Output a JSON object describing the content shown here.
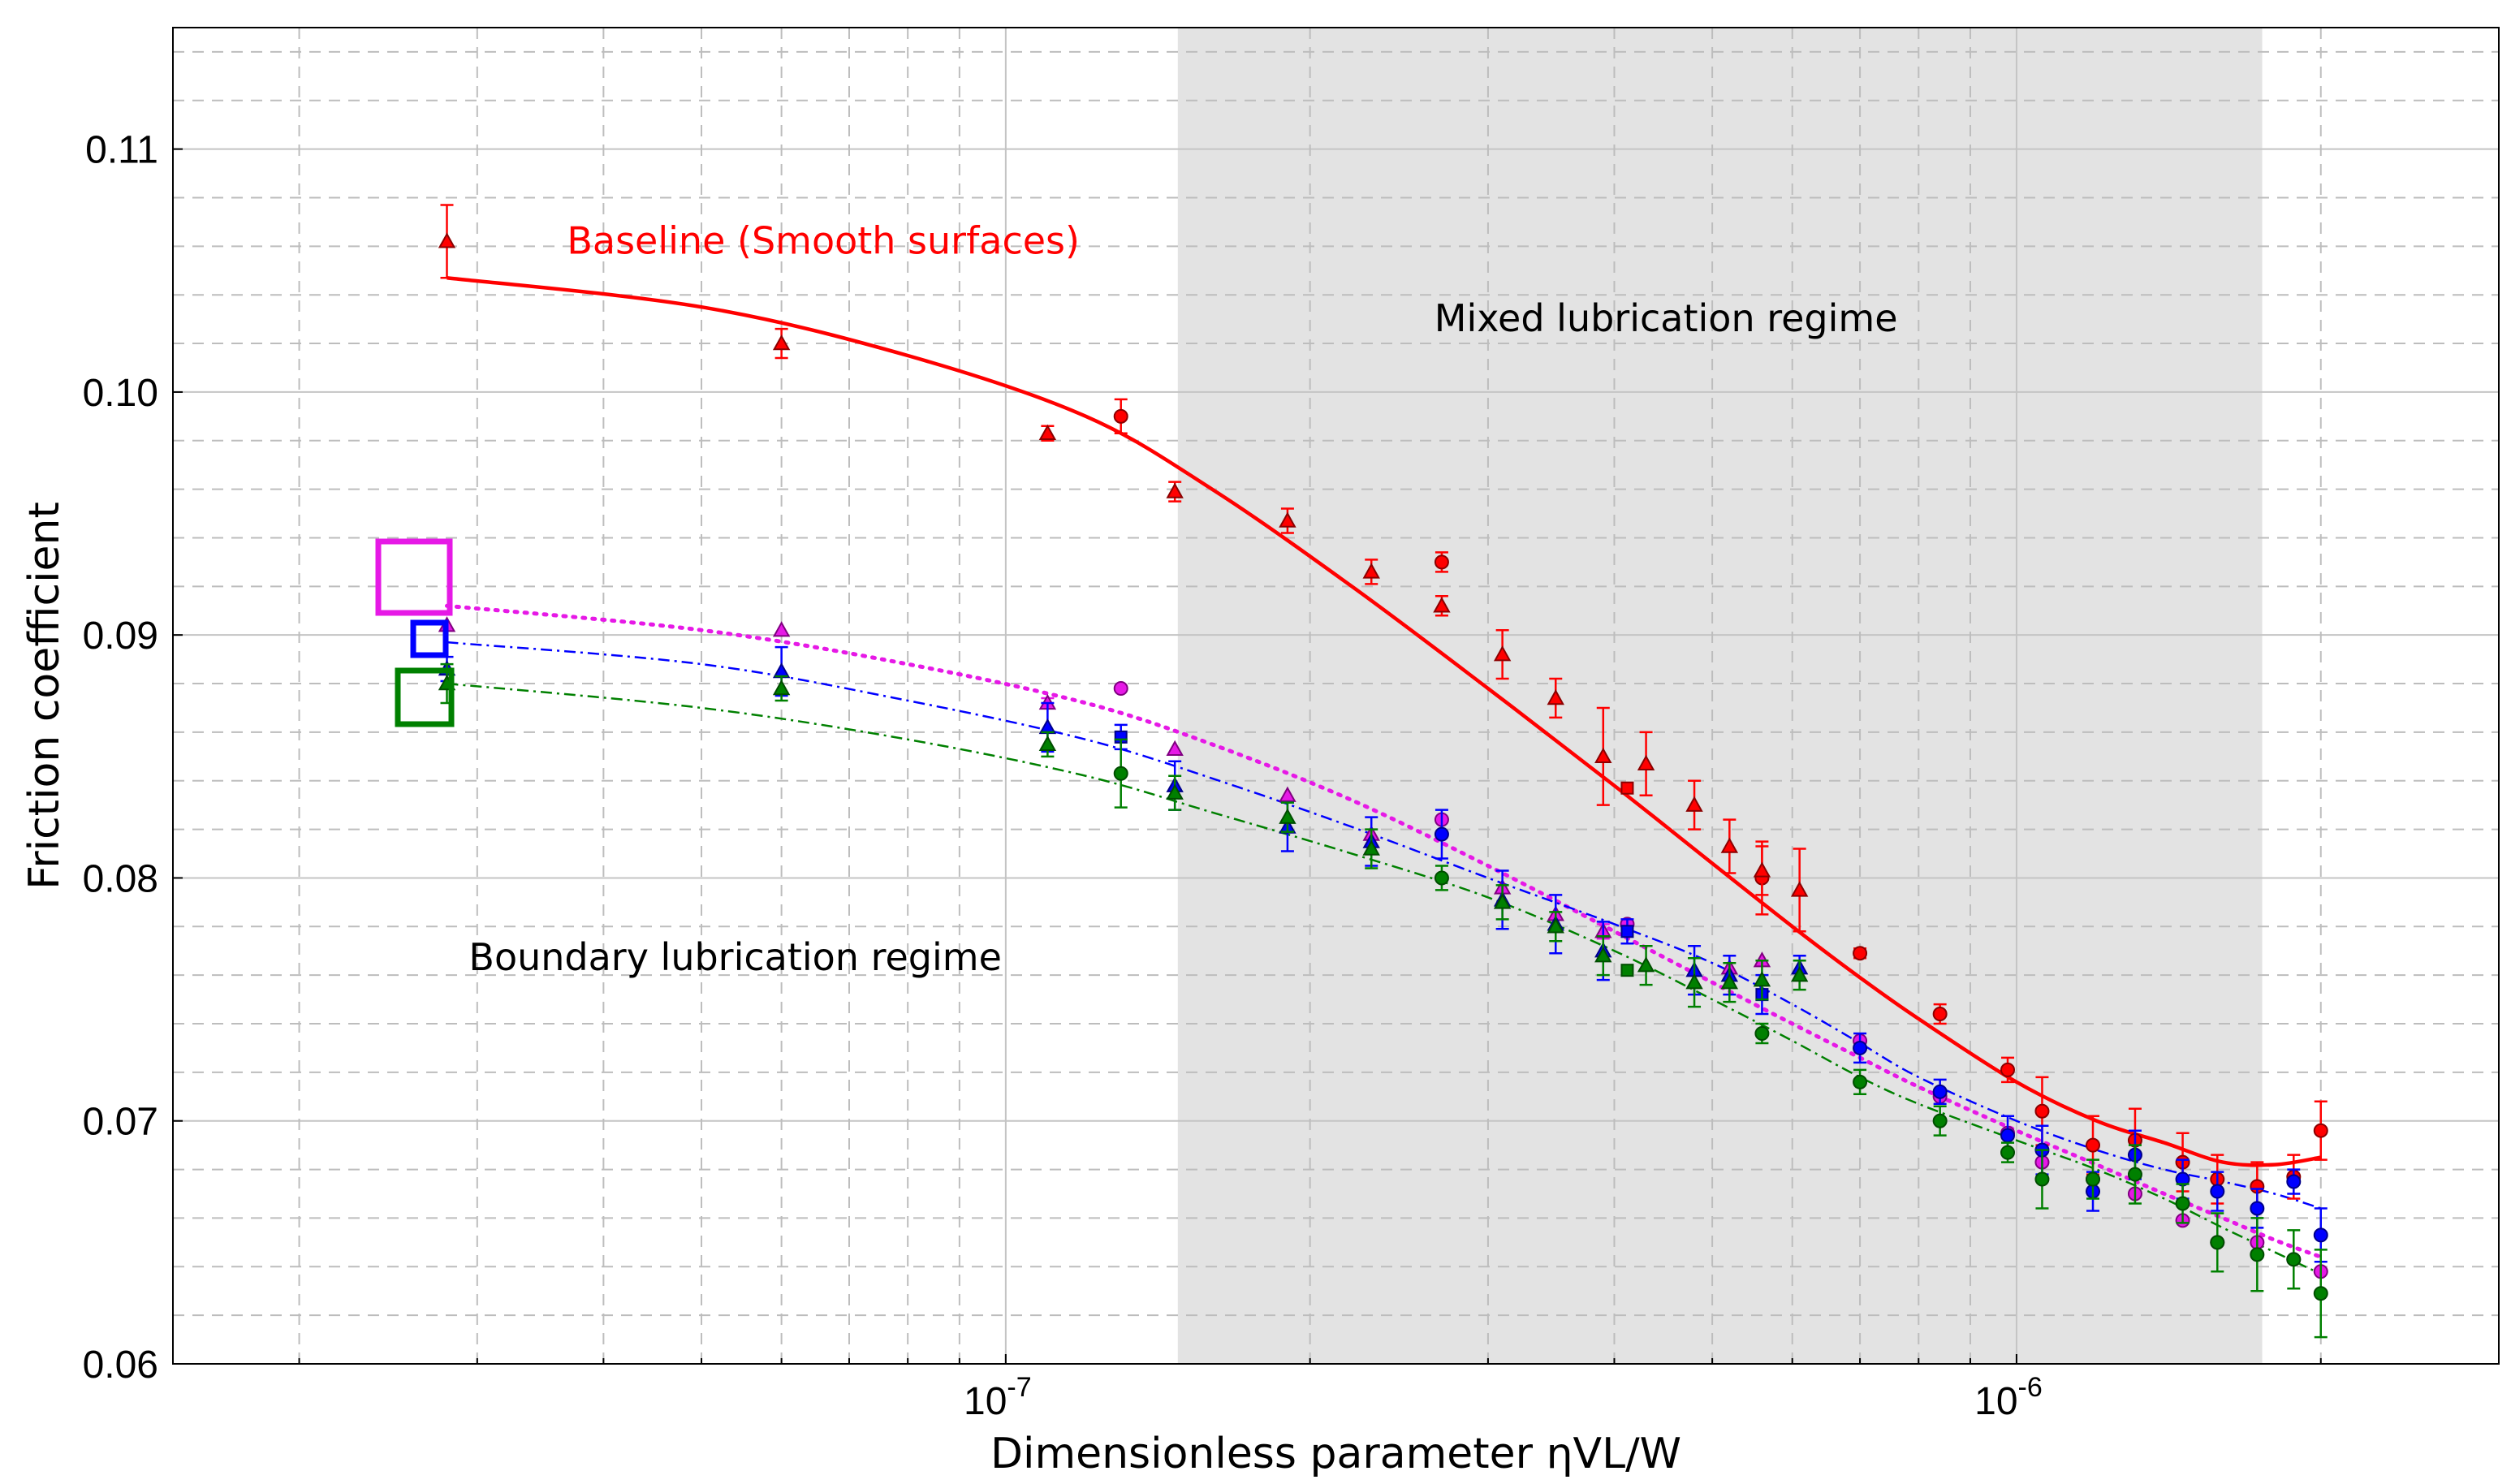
{
  "chart_data": {
    "type": "scatter",
    "title": "",
    "xlabel": "Dimensionless parameter ηVL/W",
    "ylabel": "Friction coefficient",
    "xscale": "log",
    "xlim": [
      1.5e-08,
      3e-06
    ],
    "ylim": [
      0.06,
      0.115
    ],
    "yticks": [
      0.06,
      0.07,
      0.08,
      0.09,
      0.1,
      0.11
    ],
    "ytick_labels": [
      "0.06",
      "0.07",
      "0.08",
      "0.09",
      "0.10",
      "0.11"
    ],
    "xticks": [
      1e-07,
      1e-06
    ],
    "xtick_labels": [
      {
        "base": "10",
        "exp": "-7"
      },
      {
        "base": "10",
        "exp": "-6"
      }
    ],
    "grid": true,
    "shaded_region": {
      "x_from": 1.48e-07,
      "x_to": 1.75e-06,
      "label": "Mixed lubrication regime"
    },
    "annotations": [
      {
        "text": "Baseline (Smooth surfaces)",
        "color": "#ff0000",
        "x": 6.6e-08,
        "y": 0.1057
      },
      {
        "text": "Mixed lubrication regime",
        "color": "#000000",
        "x": 4.5e-07,
        "y": 0.1025
      },
      {
        "text": "Boundary lubrication regime",
        "color": "#000000",
        "x": 5.4e-08,
        "y": 0.0762
      }
    ],
    "legend_markers": [
      {
        "name": "magenta-square",
        "color": "#e619e6",
        "size": "large"
      },
      {
        "name": "blue-square",
        "color": "#0000ff",
        "size": "small"
      },
      {
        "name": "green-square",
        "color": "#008000",
        "size": "medium"
      }
    ],
    "series": [
      {
        "name": "Baseline (Smooth surfaces)",
        "color": "#ff0000",
        "edge": "#8b0000",
        "fit_style": "solid",
        "fit": {
          "x": [
            2.8e-08,
            5e-08,
            8e-08,
            1.2e-07,
            1.6e-07,
            2.2e-07,
            3e-07,
            4e-07,
            5e-07,
            6e-07,
            7e-07,
            8e-07,
            1e-06,
            1.2e-06,
            1.4e-06,
            1.6e-06,
            1.8e-06,
            2e-06
          ],
          "y": [
            0.1047,
            0.1035,
            0.1015,
            0.099,
            0.096,
            0.092,
            0.0878,
            0.0838,
            0.0806,
            0.078,
            0.0759,
            0.0742,
            0.0716,
            0.07,
            0.0691,
            0.0683,
            0.0682,
            0.0685
          ]
        },
        "points": [
          {
            "x": 2.8e-08,
            "y": 0.1062,
            "err": 0.0015,
            "m": "tri"
          },
          {
            "x": 6e-08,
            "y": 0.102,
            "err": 0.0006,
            "m": "tri"
          },
          {
            "x": 1.1e-07,
            "y": 0.0983,
            "err": 0.0003,
            "m": "tri"
          },
          {
            "x": 1.3e-07,
            "y": 0.099,
            "err": 0.0007,
            "m": "circ"
          },
          {
            "x": 1.47e-07,
            "y": 0.0959,
            "err": 0.0004,
            "m": "tri"
          },
          {
            "x": 1.9e-07,
            "y": 0.0947,
            "err": 0.0005,
            "m": "tri"
          },
          {
            "x": 2.3e-07,
            "y": 0.0926,
            "err": 0.0005,
            "m": "tri"
          },
          {
            "x": 2.7e-07,
            "y": 0.093,
            "err": 0.0004,
            "m": "circ"
          },
          {
            "x": 2.7e-07,
            "y": 0.0912,
            "err": 0.0004,
            "m": "tri"
          },
          {
            "x": 3.1e-07,
            "y": 0.0892,
            "err": 0.001,
            "m": "tri"
          },
          {
            "x": 3.5e-07,
            "y": 0.0874,
            "err": 0.0008,
            "m": "tri"
          },
          {
            "x": 3.9e-07,
            "y": 0.085,
            "err": 0.002,
            "m": "tri"
          },
          {
            "x": 4.3e-07,
            "y": 0.0847,
            "err": 0.0013,
            "m": "tri"
          },
          {
            "x": 4.12e-07,
            "y": 0.0837,
            "err": 0,
            "m": "sq"
          },
          {
            "x": 4.8e-07,
            "y": 0.083,
            "err": 0.001,
            "m": "tri"
          },
          {
            "x": 5.2e-07,
            "y": 0.0813,
            "err": 0.0011,
            "m": "tri"
          },
          {
            "x": 5.6e-07,
            "y": 0.08,
            "err": 0.0015,
            "m": "circ"
          },
          {
            "x": 5.6e-07,
            "y": 0.0803,
            "err": 0.001,
            "m": "tri"
          },
          {
            "x": 6.1e-07,
            "y": 0.0795,
            "err": 0.0017,
            "m": "tri"
          },
          {
            "x": 7e-07,
            "y": 0.0769,
            "err": 0.0002,
            "m": "circ"
          },
          {
            "x": 8.4e-07,
            "y": 0.0744,
            "err": 0.0004,
            "m": "circ"
          },
          {
            "x": 9.8e-07,
            "y": 0.0721,
            "err": 0.0005,
            "m": "circ"
          },
          {
            "x": 1.06e-06,
            "y": 0.0704,
            "err": 0.0014,
            "m": "circ"
          },
          {
            "x": 1.19e-06,
            "y": 0.069,
            "err": 0.0012,
            "m": "circ"
          },
          {
            "x": 1.31e-06,
            "y": 0.0692,
            "err": 0.0013,
            "m": "circ"
          },
          {
            "x": 1.46e-06,
            "y": 0.0683,
            "err": 0.0012,
            "m": "circ"
          },
          {
            "x": 1.58e-06,
            "y": 0.0676,
            "err": 0.001,
            "m": "circ"
          },
          {
            "x": 1.73e-06,
            "y": 0.0673,
            "err": 0.001,
            "m": "circ"
          },
          {
            "x": 1.88e-06,
            "y": 0.0677,
            "err": 0.0009,
            "m": "circ"
          },
          {
            "x": 2e-06,
            "y": 0.0696,
            "err": 0.0012,
            "m": "circ"
          }
        ]
      },
      {
        "name": "Magenta series",
        "color": "#e619e6",
        "edge": "#800080",
        "fit_style": "dotted",
        "fit": {
          "x": [
            2.8e-08,
            5e-08,
            8e-08,
            1.2e-07,
            1.6e-07,
            2.2e-07,
            3e-07,
            4e-07,
            5e-07,
            6e-07,
            7e-07,
            8e-07,
            1e-06,
            1.2e-06,
            1.4e-06,
            1.6e-06,
            1.8e-06,
            2e-06
          ],
          "y": [
            0.0912,
            0.0902,
            0.0888,
            0.0872,
            0.0855,
            0.0832,
            0.0805,
            0.0778,
            0.0757,
            0.074,
            0.0726,
            0.0714,
            0.0696,
            0.0682,
            0.067,
            0.066,
            0.0651,
            0.0644
          ]
        },
        "points": [
          {
            "x": 2.8e-08,
            "y": 0.0904,
            "err": 0,
            "m": "tri"
          },
          {
            "x": 6e-08,
            "y": 0.0902,
            "err": 0,
            "m": "tri"
          },
          {
            "x": 1.1e-07,
            "y": 0.0872,
            "err": 0.0002,
            "m": "tri"
          },
          {
            "x": 1.3e-07,
            "y": 0.0878,
            "err": 0,
            "m": "circ"
          },
          {
            "x": 1.47e-07,
            "y": 0.0853,
            "err": 0,
            "m": "tri"
          },
          {
            "x": 1.9e-07,
            "y": 0.0834,
            "err": 0,
            "m": "tri"
          },
          {
            "x": 2.3e-07,
            "y": 0.0818,
            "err": 0,
            "m": "tri"
          },
          {
            "x": 2.7e-07,
            "y": 0.0824,
            "err": 0,
            "m": "circ"
          },
          {
            "x": 3.1e-07,
            "y": 0.0796,
            "err": 0,
            "m": "tri"
          },
          {
            "x": 3.5e-07,
            "y": 0.0785,
            "err": 0,
            "m": "tri"
          },
          {
            "x": 3.9e-07,
            "y": 0.0778,
            "err": 0.0003,
            "m": "tri"
          },
          {
            "x": 4.12e-07,
            "y": 0.0781,
            "err": 0,
            "m": "circ"
          },
          {
            "x": 5.2e-07,
            "y": 0.0763,
            "err": 0,
            "m": "tri"
          },
          {
            "x": 5.6e-07,
            "y": 0.0766,
            "err": 0,
            "m": "tri"
          },
          {
            "x": 7e-07,
            "y": 0.0733,
            "err": 0,
            "m": "circ"
          },
          {
            "x": 8.4e-07,
            "y": 0.071,
            "err": 0,
            "m": "circ"
          },
          {
            "x": 9.8e-07,
            "y": 0.0695,
            "err": 0,
            "m": "circ"
          },
          {
            "x": 1.06e-06,
            "y": 0.0683,
            "err": 0,
            "m": "circ"
          },
          {
            "x": 1.19e-06,
            "y": 0.0676,
            "err": 0,
            "m": "circ"
          },
          {
            "x": 1.31e-06,
            "y": 0.067,
            "err": 0,
            "m": "circ"
          },
          {
            "x": 1.46e-06,
            "y": 0.0659,
            "err": 0,
            "m": "circ"
          },
          {
            "x": 1.58e-06,
            "y": 0.065,
            "err": 0,
            "m": "circ"
          },
          {
            "x": 1.73e-06,
            "y": 0.065,
            "err": 0,
            "m": "circ"
          },
          {
            "x": 1.88e-06,
            "y": 0.0643,
            "err": 0,
            "m": "circ"
          },
          {
            "x": 2e-06,
            "y": 0.0638,
            "err": 0,
            "m": "circ"
          }
        ]
      },
      {
        "name": "Blue series",
        "color": "#0000ff",
        "edge": "#00008b",
        "fit_style": "dashdot",
        "fit": {
          "x": [
            2.8e-08,
            5e-08,
            8e-08,
            1.2e-07,
            1.6e-07,
            2.2e-07,
            3e-07,
            4e-07,
            5e-07,
            6e-07,
            7e-07,
            8e-07,
            1e-06,
            1.2e-06,
            1.4e-06,
            1.6e-06,
            1.8e-06,
            2e-06
          ],
          "y": [
            0.0897,
            0.0888,
            0.0873,
            0.0857,
            0.0841,
            0.0821,
            0.08,
            0.0781,
            0.0765,
            0.0748,
            0.0732,
            0.0718,
            0.07,
            0.0688,
            0.068,
            0.0675,
            0.067,
            0.0664
          ]
        },
        "points": [
          {
            "x": 2.8e-08,
            "y": 0.0886,
            "err": 0.0005,
            "m": "tri"
          },
          {
            "x": 6e-08,
            "y": 0.0885,
            "err": 0.001,
            "m": "tri"
          },
          {
            "x": 1.1e-07,
            "y": 0.0862,
            "err": 0.001,
            "m": "tri"
          },
          {
            "x": 1.3e-07,
            "y": 0.0858,
            "err": 0.0005,
            "m": "sq"
          },
          {
            "x": 1.47e-07,
            "y": 0.0838,
            "err": 0.001,
            "m": "tri"
          },
          {
            "x": 1.9e-07,
            "y": 0.0821,
            "err": 0.001,
            "m": "tri"
          },
          {
            "x": 2.3e-07,
            "y": 0.0815,
            "err": 0.001,
            "m": "tri"
          },
          {
            "x": 2.7e-07,
            "y": 0.0818,
            "err": 0.001,
            "m": "circ"
          },
          {
            "x": 3.1e-07,
            "y": 0.0791,
            "err": 0.0012,
            "m": "tri"
          },
          {
            "x": 3.5e-07,
            "y": 0.0781,
            "err": 0.0012,
            "m": "tri"
          },
          {
            "x": 3.9e-07,
            "y": 0.077,
            "err": 0.0012,
            "m": "tri"
          },
          {
            "x": 4.12e-07,
            "y": 0.0778,
            "err": 0.0005,
            "m": "sq"
          },
          {
            "x": 4.8e-07,
            "y": 0.0762,
            "err": 0.001,
            "m": "tri"
          },
          {
            "x": 5.2e-07,
            "y": 0.076,
            "err": 0.0008,
            "m": "tri"
          },
          {
            "x": 5.6e-07,
            "y": 0.0752,
            "err": 0.0008,
            "m": "sq"
          },
          {
            "x": 6.1e-07,
            "y": 0.0763,
            "err": 0.0005,
            "m": "tri"
          },
          {
            "x": 7e-07,
            "y": 0.073,
            "err": 0.0006,
            "m": "circ"
          },
          {
            "x": 8.4e-07,
            "y": 0.0712,
            "err": 0.0005,
            "m": "circ"
          },
          {
            "x": 9.8e-07,
            "y": 0.0694,
            "err": 0.0008,
            "m": "circ"
          },
          {
            "x": 1.06e-06,
            "y": 0.0688,
            "err": 0.001,
            "m": "circ"
          },
          {
            "x": 1.19e-06,
            "y": 0.0671,
            "err": 0.0008,
            "m": "circ"
          },
          {
            "x": 1.31e-06,
            "y": 0.0686,
            "err": 0.001,
            "m": "circ"
          },
          {
            "x": 1.46e-06,
            "y": 0.0676,
            "err": 0.0008,
            "m": "circ"
          },
          {
            "x": 1.58e-06,
            "y": 0.0671,
            "err": 0.0008,
            "m": "circ"
          },
          {
            "x": 1.73e-06,
            "y": 0.0664,
            "err": 0.0008,
            "m": "circ"
          },
          {
            "x": 1.88e-06,
            "y": 0.0675,
            "err": 0.0005,
            "m": "circ"
          },
          {
            "x": 2e-06,
            "y": 0.0653,
            "err": 0.0011,
            "m": "circ"
          }
        ]
      },
      {
        "name": "Green series",
        "color": "#008000",
        "edge": "#004d00",
        "fit_style": "dashdot",
        "fit": {
          "x": [
            2.8e-08,
            5e-08,
            8e-08,
            1.2e-07,
            1.6e-07,
            2.2e-07,
            3e-07,
            4e-07,
            5e-07,
            6e-07,
            7e-07,
            8e-07,
            1e-06,
            1.2e-06,
            1.4e-06,
            1.6e-06,
            1.8e-06,
            2e-06
          ],
          "y": [
            0.088,
            0.087,
            0.0857,
            0.0842,
            0.0827,
            0.081,
            0.0792,
            0.077,
            0.075,
            0.0733,
            0.0718,
            0.0707,
            0.0692,
            0.068,
            0.0668,
            0.0656,
            0.0646,
            0.0637
          ]
        },
        "points": [
          {
            "x": 2.8e-08,
            "y": 0.088,
            "err": 0.0008,
            "m": "tri"
          },
          {
            "x": 6e-08,
            "y": 0.0878,
            "err": 0.0005,
            "m": "tri"
          },
          {
            "x": 1.1e-07,
            "y": 0.0855,
            "err": 0.0005,
            "m": "tri"
          },
          {
            "x": 1.3e-07,
            "y": 0.0843,
            "err": 0.0014,
            "m": "circ"
          },
          {
            "x": 1.47e-07,
            "y": 0.0835,
            "err": 0.0007,
            "m": "tri"
          },
          {
            "x": 1.9e-07,
            "y": 0.0825,
            "err": 0.0006,
            "m": "tri"
          },
          {
            "x": 2.3e-07,
            "y": 0.0812,
            "err": 0.0008,
            "m": "tri"
          },
          {
            "x": 2.7e-07,
            "y": 0.08,
            "err": 0.0005,
            "m": "circ"
          },
          {
            "x": 3.1e-07,
            "y": 0.079,
            "err": 0.0007,
            "m": "tri"
          },
          {
            "x": 3.5e-07,
            "y": 0.078,
            "err": 0.0006,
            "m": "tri"
          },
          {
            "x": 3.9e-07,
            "y": 0.0768,
            "err": 0.0008,
            "m": "tri"
          },
          {
            "x": 4.12e-07,
            "y": 0.0762,
            "err": 0,
            "m": "sq"
          },
          {
            "x": 4.3e-07,
            "y": 0.0764,
            "err": 0.0008,
            "m": "tri"
          },
          {
            "x": 4.8e-07,
            "y": 0.0757,
            "err": 0.001,
            "m": "tri"
          },
          {
            "x": 5.2e-07,
            "y": 0.0757,
            "err": 0.0008,
            "m": "tri"
          },
          {
            "x": 5.6e-07,
            "y": 0.0758,
            "err": 0.0008,
            "m": "tri"
          },
          {
            "x": 6.1e-07,
            "y": 0.076,
            "err": 0.0006,
            "m": "tri"
          },
          {
            "x": 5.6e-07,
            "y": 0.0736,
            "err": 0.0004,
            "m": "circ"
          },
          {
            "x": 7e-07,
            "y": 0.0716,
            "err": 0.0005,
            "m": "circ"
          },
          {
            "x": 8.4e-07,
            "y": 0.07,
            "err": 0.0006,
            "m": "circ"
          },
          {
            "x": 9.8e-07,
            "y": 0.0687,
            "err": 0.0004,
            "m": "circ"
          },
          {
            "x": 1.06e-06,
            "y": 0.0676,
            "err": 0.0012,
            "m": "circ"
          },
          {
            "x": 1.19e-06,
            "y": 0.0676,
            "err": 0.0008,
            "m": "circ"
          },
          {
            "x": 1.31e-06,
            "y": 0.0678,
            "err": 0.0012,
            "m": "circ"
          },
          {
            "x": 1.46e-06,
            "y": 0.0666,
            "err": 0.0008,
            "m": "circ"
          },
          {
            "x": 1.58e-06,
            "y": 0.065,
            "err": 0.0012,
            "m": "circ"
          },
          {
            "x": 1.73e-06,
            "y": 0.0645,
            "err": 0.0015,
            "m": "circ"
          },
          {
            "x": 1.88e-06,
            "y": 0.0643,
            "err": 0.0012,
            "m": "circ"
          },
          {
            "x": 2e-06,
            "y": 0.0629,
            "err": 0.0018,
            "m": "circ"
          }
        ]
      }
    ]
  }
}
